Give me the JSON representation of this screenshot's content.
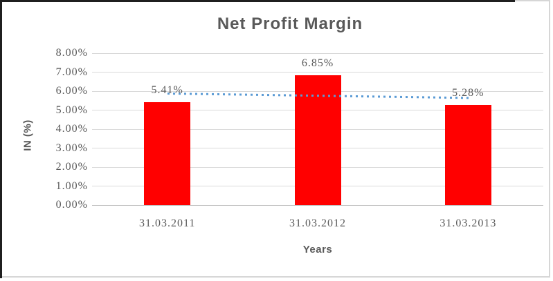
{
  "chart_data": {
    "type": "bar",
    "title": "Net Profit Margin",
    "xlabel": "Years",
    "ylabel": "IN (%)",
    "categories": [
      "31.03.2011",
      "31.03.2012",
      "31.03.2013"
    ],
    "values": [
      5.41,
      6.85,
      5.28
    ],
    "data_labels": [
      "5.41%",
      "6.85%",
      "5.28%"
    ],
    "ylim": [
      0,
      8
    ],
    "ytick_step": 1,
    "ytick_labels": [
      "0.00%",
      "1.00%",
      "2.00%",
      "3.00%",
      "4.00%",
      "5.00%",
      "6.00%",
      "7.00%",
      "8.00%"
    ],
    "grid": true,
    "legend": "none",
    "bar_color": "#FF0000",
    "trendline": {
      "type": "linear",
      "style": "dotted",
      "color": "#5B9BD5",
      "y_start": 5.87,
      "y_end": 5.64
    },
    "colors": {
      "text": "#595959",
      "gridline": "#D9D9D9",
      "axis_line": "#BFBFBF",
      "frame_border": "#D6D6D6",
      "page_edge": "#1F1F1F",
      "background": "#FFFFFF"
    }
  }
}
